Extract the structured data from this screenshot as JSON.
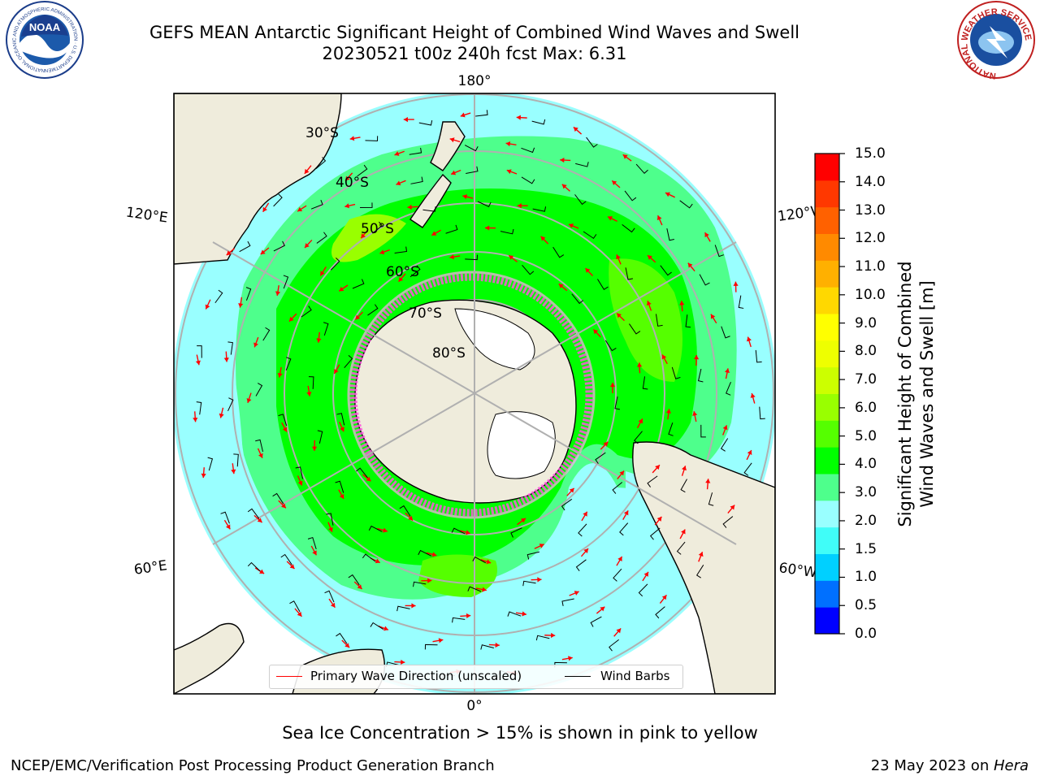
{
  "header": {
    "title_line1": "GEFS MEAN Antarctic Significant Height of Combined Wind Waves and Swell",
    "title_line2": "20230521 t00z 240h fcst   Max: 6.31"
  },
  "logos": {
    "noaa": {
      "text": "NOAA",
      "ring_text": "NATIONAL OCEANIC AND ATMOSPHERIC ADMINISTRATION · U.S. DEPARTMENT OF COMMERCE"
    },
    "nws": {
      "ring_text": "NATIONAL WEATHER SERVICE"
    }
  },
  "map": {
    "longitude_labels": {
      "top": "180°",
      "bottom": "0°",
      "left_upper": "120°E",
      "left_lower": "60°E",
      "right_upper": "120°W",
      "right_lower": "60°W"
    },
    "latitude_labels": [
      "30°S",
      "40°S",
      "50°S",
      "60°S",
      "70°S",
      "80°S"
    ],
    "colors": {
      "land": "#efecdc",
      "ice_sheet": "#ffffff",
      "sea_ice": "#ff55dd",
      "grid": "#b0b0b0",
      "wave_arrow": "#ff0000",
      "wind_barb": "#000000"
    }
  },
  "colorbar": {
    "ticks": [
      "15.0",
      "14.0",
      "13.0",
      "12.0",
      "11.0",
      "10.0",
      "9.0",
      "8.0",
      "7.0",
      "6.0",
      "5.0",
      "4.0",
      "3.0",
      "2.0",
      "1.5",
      "1.0",
      "0.5",
      "0.0"
    ],
    "colors": [
      "#0000ff",
      "#0070ff",
      "#00d0ff",
      "#40fdf8",
      "#99ffff",
      "#4eff8c",
      "#00ff00",
      "#55ff00",
      "#99ff00",
      "#ccff00",
      "#eeff00",
      "#ffff00",
      "#ffd800",
      "#ffb000",
      "#ff8a00",
      "#ff6100",
      "#ff3800",
      "#ff0000"
    ],
    "label_line1": "Significant Height of Combined",
    "label_line2": "Wind Waves and Swell [m]"
  },
  "legend": {
    "wave_label": "Primary Wave Direction (unscaled)",
    "wind_label": "Wind Barbs"
  },
  "caption": "Sea Ice Concentration > 15% is shown in pink to yellow",
  "footer": {
    "left": "NCEP/EMC/Verification Post Processing Product Generation Branch",
    "date_prefix": "23 May 2023 on ",
    "host": "Hera"
  }
}
